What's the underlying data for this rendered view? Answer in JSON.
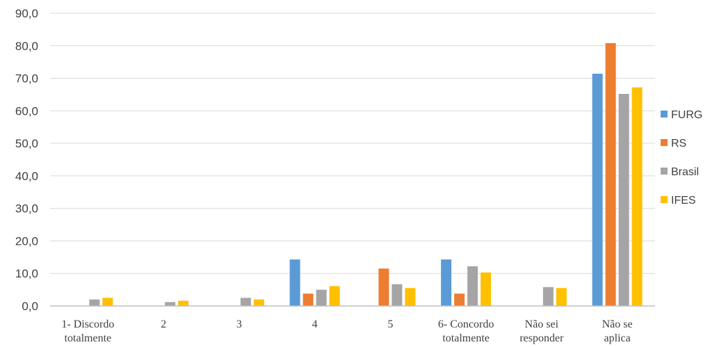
{
  "chart_data": {
    "type": "bar",
    "title": "",
    "xlabel": "",
    "ylabel": "",
    "ylim": [
      0,
      90
    ],
    "yticks": [
      "0,0",
      "10,0",
      "20,0",
      "30,0",
      "40,0",
      "50,0",
      "60,0",
      "70,0",
      "80,0",
      "90,0"
    ],
    "grid": true,
    "legend_position": "right",
    "categories": [
      [
        "1- Discordo",
        "totalmente"
      ],
      [
        "2"
      ],
      [
        "3"
      ],
      [
        "4"
      ],
      [
        "5"
      ],
      [
        "6- Concordo",
        "totalmente"
      ],
      [
        "Não sei",
        "responder"
      ],
      [
        "Não se",
        "aplica"
      ]
    ],
    "series": [
      {
        "name": "FURG",
        "color": "#5B9BD5",
        "values": [
          0,
          0,
          0,
          14.3,
          0,
          14.3,
          0,
          71.4
        ]
      },
      {
        "name": "RS",
        "color": "#ED7D31",
        "values": [
          0,
          0,
          0,
          3.8,
          11.5,
          3.8,
          0,
          80.8
        ]
      },
      {
        "name": "Brasil",
        "color": "#A5A5A5",
        "values": [
          2.0,
          1.2,
          2.5,
          5.0,
          6.7,
          12.2,
          5.8,
          65.2
        ]
      },
      {
        "name": "IFES",
        "color": "#FFC000",
        "values": [
          2.5,
          1.6,
          2.0,
          6.1,
          5.5,
          10.3,
          5.5,
          67.2
        ]
      }
    ]
  }
}
